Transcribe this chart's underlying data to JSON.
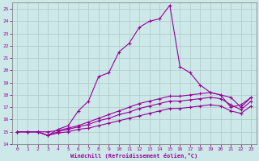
{
  "xlabel": "Windchill (Refroidissement éolien,°C)",
  "xlim": [
    -0.5,
    23.5
  ],
  "ylim": [
    14,
    25.5
  ],
  "yticks": [
    14,
    15,
    16,
    17,
    18,
    19,
    20,
    21,
    22,
    23,
    24,
    25
  ],
  "xticks": [
    0,
    1,
    2,
    3,
    4,
    5,
    6,
    7,
    8,
    9,
    10,
    11,
    12,
    13,
    14,
    15,
    16,
    17,
    18,
    19,
    20,
    21,
    22,
    23
  ],
  "background_color": "#cce8e8",
  "line_color": "#990099",
  "grid_color": "#b0c8c8",
  "lines": [
    {
      "x": [
        0,
        1,
        2,
        3,
        4,
        5,
        6,
        7,
        8,
        9,
        10,
        11,
        12,
        13,
        14,
        15,
        16,
        17,
        18,
        19,
        20,
        21,
        22,
        23
      ],
      "y": [
        15.0,
        15.0,
        15.0,
        14.7,
        15.2,
        15.5,
        16.7,
        17.5,
        19.5,
        19.8,
        21.5,
        22.2,
        23.5,
        24.0,
        24.2,
        25.3,
        20.3,
        19.8,
        18.8,
        18.2,
        18.0,
        17.0,
        17.2,
        17.8
      ]
    },
    {
      "x": [
        0,
        1,
        2,
        3,
        4,
        5,
        6,
        7,
        8,
        9,
        10,
        11,
        12,
        13,
        14,
        15,
        16,
        17,
        18,
        19,
        20,
        21,
        22,
        23
      ],
      "y": [
        15.0,
        15.0,
        15.0,
        15.0,
        15.1,
        15.3,
        15.5,
        15.8,
        16.1,
        16.4,
        16.7,
        17.0,
        17.3,
        17.5,
        17.7,
        17.9,
        17.9,
        18.0,
        18.1,
        18.2,
        18.0,
        17.8,
        17.0,
        17.8
      ]
    },
    {
      "x": [
        0,
        1,
        2,
        3,
        4,
        5,
        6,
        7,
        8,
        9,
        10,
        11,
        12,
        13,
        14,
        15,
        16,
        17,
        18,
        19,
        20,
        21,
        22,
        23
      ],
      "y": [
        15.0,
        15.0,
        15.0,
        14.7,
        15.0,
        15.2,
        15.4,
        15.6,
        15.9,
        16.1,
        16.4,
        16.6,
        16.9,
        17.1,
        17.3,
        17.5,
        17.5,
        17.6,
        17.7,
        17.8,
        17.7,
        17.2,
        16.8,
        17.5
      ]
    },
    {
      "x": [
        0,
        1,
        2,
        3,
        4,
        5,
        6,
        7,
        8,
        9,
        10,
        11,
        12,
        13,
        14,
        15,
        16,
        17,
        18,
        19,
        20,
        21,
        22,
        23
      ],
      "y": [
        15.0,
        15.0,
        15.0,
        14.7,
        14.9,
        15.0,
        15.2,
        15.3,
        15.5,
        15.7,
        15.9,
        16.1,
        16.3,
        16.5,
        16.7,
        16.9,
        16.9,
        17.0,
        17.1,
        17.2,
        17.1,
        16.7,
        16.5,
        17.1
      ]
    }
  ]
}
